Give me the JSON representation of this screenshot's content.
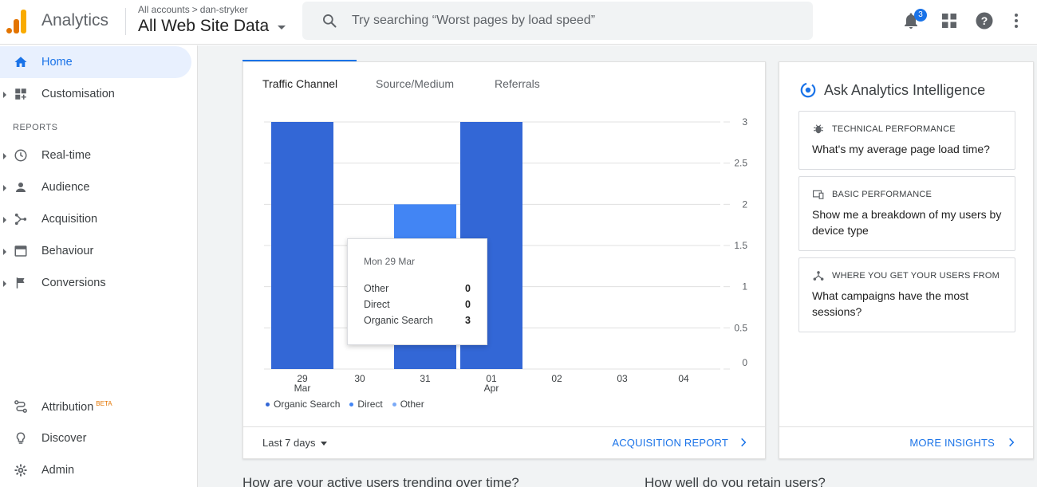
{
  "header": {
    "app_name": "Analytics",
    "breadcrumb": [
      "All accounts",
      "dan-stryker"
    ],
    "breadcrumb_sep": ">",
    "view_name": "All Web Site Data",
    "search_placeholder": "Try searching “Worst pages by load speed”",
    "notifications_count": "3"
  },
  "sidebar": {
    "top_items": [
      {
        "label": "Home",
        "icon": "home-icon",
        "active": true
      },
      {
        "label": "Customisation",
        "icon": "dashboard-icon"
      }
    ],
    "section_title": "REPORTS",
    "report_items": [
      {
        "label": "Real-time",
        "icon": "clock-icon"
      },
      {
        "label": "Audience",
        "icon": "person-icon"
      },
      {
        "label": "Acquisition",
        "icon": "acquisition-icon"
      },
      {
        "label": "Behaviour",
        "icon": "behaviour-icon"
      },
      {
        "label": "Conversions",
        "icon": "flag-icon"
      }
    ],
    "bottom_items": [
      {
        "label": "Attribution",
        "badge": "BETA",
        "icon": "attribution-icon"
      },
      {
        "label": "Discover",
        "icon": "lightbulb-icon"
      },
      {
        "label": "Admin",
        "icon": "gear-icon"
      }
    ]
  },
  "traffic_card": {
    "tabs": [
      "Traffic Channel",
      "Source/Medium",
      "Referrals"
    ],
    "footer": {
      "date_range": "Last 7 days",
      "report_link": "ACQUISITION REPORT"
    }
  },
  "tooltip": {
    "date": "Mon 29 Mar",
    "rows": [
      {
        "label": "Other",
        "value": "0"
      },
      {
        "label": "Direct",
        "value": "0"
      },
      {
        "label": "Organic Search",
        "value": "3"
      }
    ]
  },
  "chart_data": {
    "type": "bar",
    "stacked": true,
    "categories": [
      "29 Mar",
      "30",
      "31",
      "01 Apr",
      "02",
      "03",
      "04"
    ],
    "x_tick_labels": [
      [
        "29",
        "Mar"
      ],
      [
        "30"
      ],
      [
        "31"
      ],
      [
        "01",
        "Apr"
      ],
      [
        "02"
      ],
      [
        "03"
      ],
      [
        "04"
      ]
    ],
    "series": [
      {
        "name": "Organic Search",
        "color": "#3367d6",
        "values": [
          3,
          0,
          1,
          3,
          0,
          0,
          0
        ]
      },
      {
        "name": "Direct",
        "color": "#4285f4",
        "values": [
          0,
          0,
          1,
          0,
          0,
          0,
          0
        ]
      },
      {
        "name": "Other",
        "color": "#7baaf7",
        "values": [
          0,
          0,
          0,
          0,
          0,
          0,
          0
        ]
      }
    ],
    "y_ticks": [
      "3",
      "2.5",
      "2",
      "1.5",
      "1",
      "0.5",
      "0"
    ],
    "ylim": [
      0,
      3
    ],
    "y_axis_side": "right",
    "grid": true,
    "legend_position": "bottom"
  },
  "insights_card": {
    "title": "Ask Analytics Intelligence",
    "questions": [
      {
        "category": "TECHNICAL PERFORMANCE",
        "icon": "bug-icon",
        "question": "What's my average page load time?"
      },
      {
        "category": "BASIC PERFORMANCE",
        "icon": "devices-icon",
        "question": "Show me a breakdown of my users by device type"
      },
      {
        "category": "WHERE YOU GET YOUR USERS FROM",
        "icon": "share-icon",
        "question": "What campaigns have the most sessions?"
      }
    ],
    "footer_link": "MORE INSIGHTS"
  },
  "below_fold": {
    "left_heading": "How are your active users trending over time?",
    "right_heading": "How well do you retain users?"
  }
}
